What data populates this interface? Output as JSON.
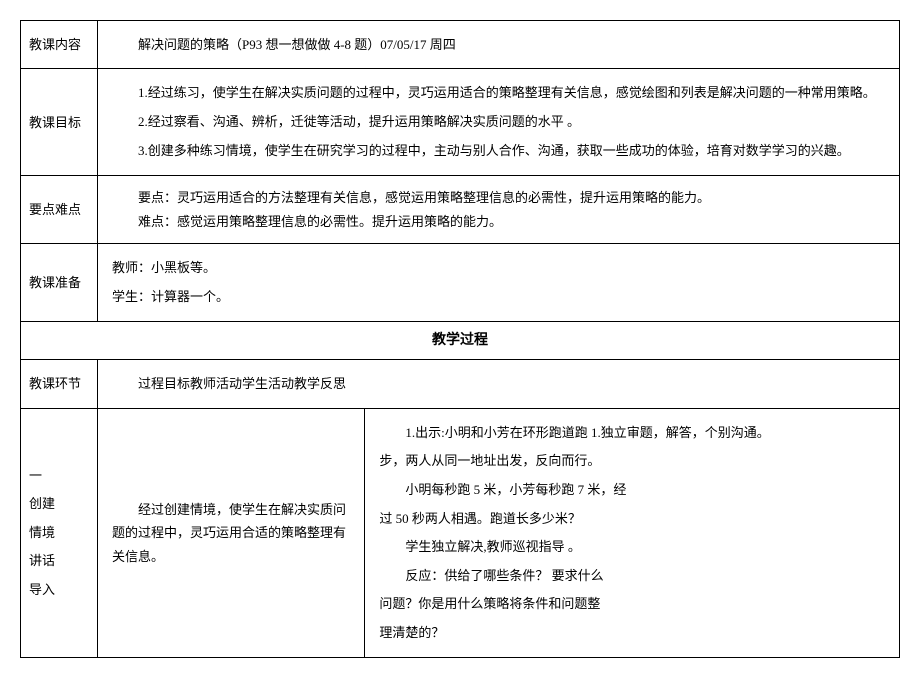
{
  "rows": {
    "content": {
      "label": "教课内容",
      "text": "解决问题的策略（P93 想一想做做 4-8 题）07/05/17 周四"
    },
    "goals": {
      "label": "教课目标",
      "items": [
        "1.经过练习，使学生在解决实质问题的过程中，灵巧运用适合的策略整理有关信息，感觉绘图和列表是解决问题的一种常用策略。",
        "2.经过察看、沟通、辨析，迁徙等活动，提升运用策略解决实质问题的水平 。",
        "3.创建多种练习情境，使学生在研究学习的过程中，主动与别人合作、沟通，获取一些成功的体验，培育对数学学习的兴趣。"
      ]
    },
    "keypoints": {
      "label": "要点难点",
      "key": "要点：灵巧运用适合的方法整理有关信息，感觉运用策略整理信息的必需性，提升运用策略的能力。",
      "difficulty": "难点：感觉运用策略整理信息的必需性。提升运用策略的能力。"
    },
    "prep": {
      "label": "教课准备",
      "teacher": "教师：小黑板等。",
      "student": "学生：计算器一个。"
    },
    "process_title": "教学过程",
    "phase_header": {
      "label": "教课环节",
      "text": "过程目标教师活动学生活动教学反思"
    },
    "phase1": {
      "label1": "一",
      "label2": "创建",
      "label3": "情境",
      "label4": "",
      "label5": "讲话",
      "label6": "导入",
      "goal": "经过创建情境，使学生在解决实质问题的过程中，灵巧运用合适的策略整理有关信息。",
      "activity_lines": [
        "1.出示:小明和小芳在环形跑道跑 1.独立审题，解答，个别沟通。",
        "步，两人从同一地址出发，反向而行。",
        "小明每秒跑 5 米，小芳每秒跑 7 米，经",
        "过 50 秒两人相遇。跑道长多少米？",
        "学生独立解决,教师巡视指导 。",
        "反应：供给了哪些条件？ 要求什么",
        "问题？你是用什么策略将条件和问题整",
        "理清楚的？"
      ]
    }
  },
  "styles": {
    "label_width": 60,
    "subcol2_width": 180,
    "font_size": 13,
    "line_height": 1.8,
    "border_color": "#000000",
    "bg_color": "#ffffff",
    "text_color": "#000000"
  }
}
